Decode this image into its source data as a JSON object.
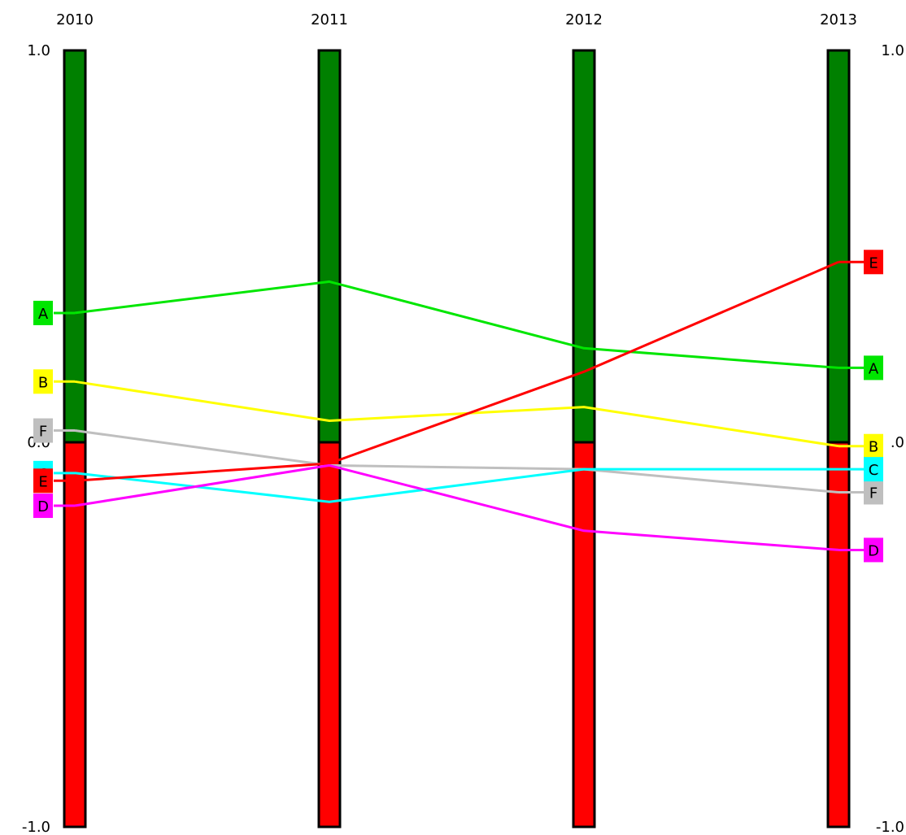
{
  "chart_data": {
    "type": "line",
    "x": [
      "2010",
      "2011",
      "2012",
      "2013"
    ],
    "ylim": [
      -1.0,
      1.0
    ],
    "left_ticks": [
      "1.0",
      "0.0",
      "-1.0"
    ],
    "right_ticks": [
      "1.0",
      ".0",
      "-1.0"
    ],
    "grid": false,
    "bar_colors": {
      "positive": "#008000",
      "negative": "#ff0000",
      "outline": "#000000"
    },
    "series": [
      {
        "name": "A",
        "color": "#00e600",
        "values": [
          0.33,
          0.41,
          0.24,
          0.19
        ]
      },
      {
        "name": "B",
        "color": "#ffff00",
        "values": [
          0.155,
          0.055,
          0.09,
          -0.01
        ]
      },
      {
        "name": "F",
        "color": "#bfbfbf",
        "values": [
          0.03,
          -0.06,
          -0.07,
          -0.13
        ]
      },
      {
        "name": "C",
        "color": "#00ffff",
        "values": [
          -0.08,
          -0.155,
          -0.07,
          -0.07
        ]
      },
      {
        "name": "E",
        "color": "#ff0000",
        "values": [
          -0.1,
          -0.055,
          0.18,
          0.46
        ]
      },
      {
        "name": "D",
        "color": "#ff00ff",
        "values": [
          -0.165,
          -0.06,
          -0.23,
          -0.28
        ]
      }
    ]
  }
}
